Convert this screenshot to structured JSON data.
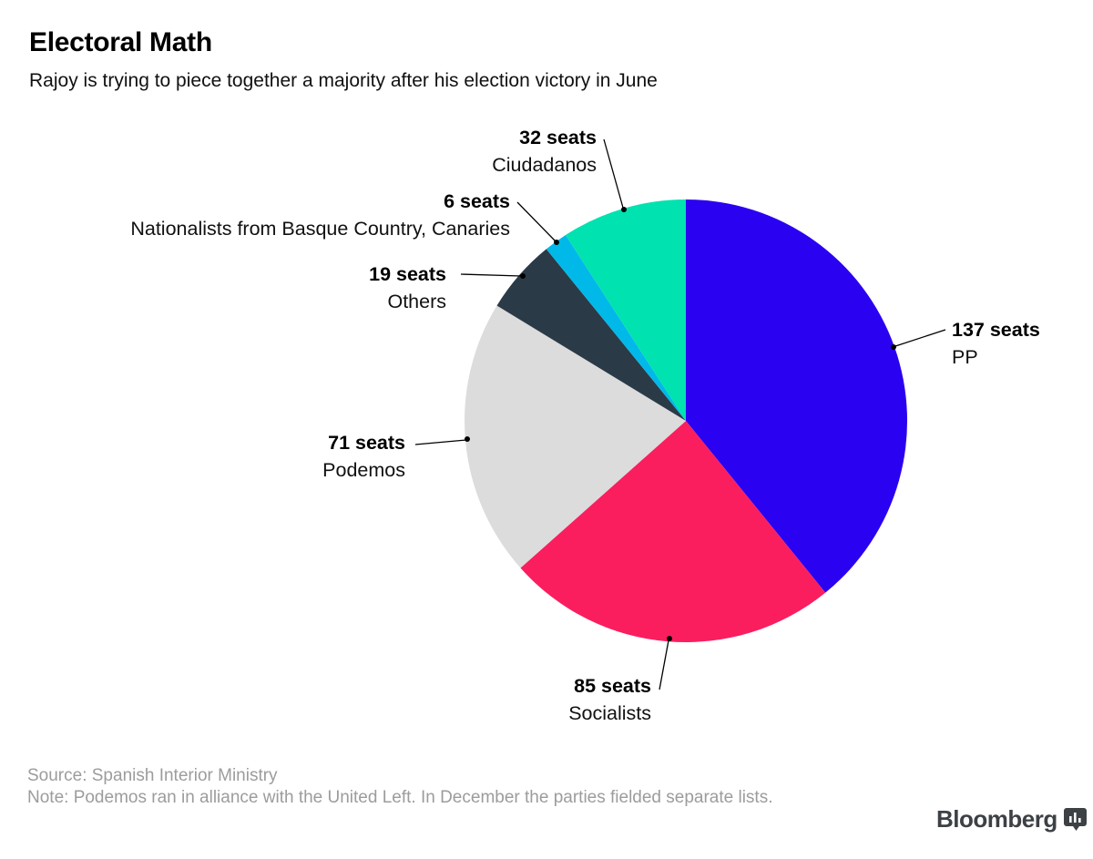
{
  "header": {
    "title": "Electoral Math",
    "subtitle": "Rajoy is trying to piece together a majority after his election victory in June"
  },
  "chart_data": {
    "type": "pie",
    "title": "Electoral Math",
    "subtitle": "Rajoy is trying to piece together a majority after his election victory in June",
    "unit": "seats",
    "total_seats": 350,
    "start_angle_deg": -90,
    "direction": "clockwise",
    "legend_position": "callout-labels",
    "series": [
      {
        "id": "pp",
        "label": "PP",
        "seats": 137,
        "color": "#2a01f0"
      },
      {
        "id": "socialists",
        "label": "Socialists",
        "seats": 85,
        "color": "#fa1e5f"
      },
      {
        "id": "podemos",
        "label": "Podemos",
        "seats": 71,
        "color": "#dcdcdc"
      },
      {
        "id": "others",
        "label": "Others",
        "seats": 19,
        "color": "#2b3a47"
      },
      {
        "id": "nationalists",
        "label": "Nationalists from Basque Country, Canaries",
        "seats": 6,
        "color": "#00b9e9"
      },
      {
        "id": "ciudadanos",
        "label": "Ciudadanos",
        "seats": 32,
        "color": "#00e2b0"
      }
    ]
  },
  "callouts": {
    "ciudadanos": {
      "value": "32 seats",
      "name": "Ciudadanos"
    },
    "nationalists": {
      "value": "6 seats",
      "name": "Nationalists from Basque Country, Canaries"
    },
    "others": {
      "value": "19 seats",
      "name": "Others"
    },
    "podemos": {
      "value": "71 seats",
      "name": "Podemos"
    },
    "pp": {
      "value": "137 seats",
      "name": "PP"
    },
    "socialists": {
      "value": "85 seats",
      "name": "Socialists"
    }
  },
  "footer": {
    "source": "Source: Spanish Interior Ministry",
    "note": "Note: Podemos ran in alliance with the United Left. In December the parties fielded separate lists.",
    "brand": "Bloomberg"
  }
}
